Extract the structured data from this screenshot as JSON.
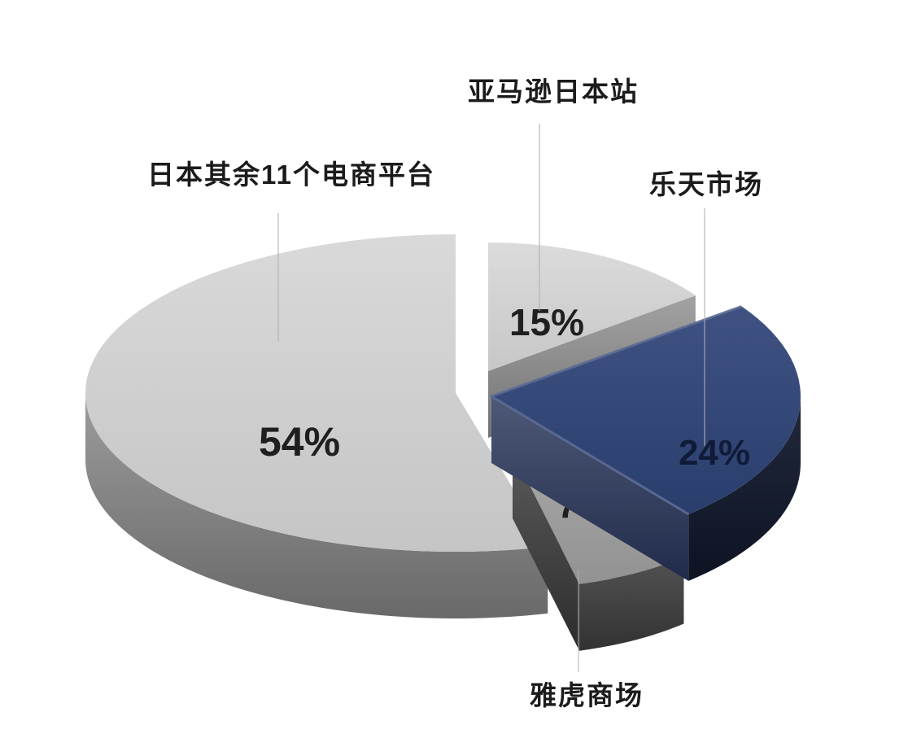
{
  "canvas": {
    "background": "#ffffff"
  },
  "chart_data": {
    "type": "pie",
    "style": "3d-exploded",
    "unit": "%",
    "direction": "clockwise",
    "start_angle_deg": 0,
    "legend_position": "callout-labels",
    "title": "",
    "slices": [
      {
        "id": "amazon",
        "label": "亚马逊日本站",
        "value": 15,
        "value_label": "15%",
        "color_top": "#d8d8d8",
        "color_cut": "#8d8d8d",
        "color_rim": "#8d8d8d",
        "pct_color": "#1f1f1f"
      },
      {
        "id": "rakuten",
        "label": "乐天市场",
        "value": 24,
        "value_label": "24%",
        "color_top": "#2e4377",
        "color_cut": "#27345a",
        "color_rim": "#131b30",
        "pct_color": "#101b38"
      },
      {
        "id": "yahoo",
        "label": "雅虎商场",
        "value": 7,
        "value_label": "7%",
        "color_top": "#9f9f9f",
        "color_cut": "#363636",
        "color_rim": "#474747",
        "pct_color": "#1f1f1f"
      },
      {
        "id": "others",
        "label": "日本其余11个电商平台",
        "value": 54,
        "value_label": "54%",
        "color_top": "#d6d6d6",
        "color_cut": "#9a9a9a",
        "color_rim": "#969696",
        "pct_color": "#1f1f1f"
      }
    ],
    "leader_line_color": "#b0b0b0",
    "label_color": "#1b1b1b"
  }
}
